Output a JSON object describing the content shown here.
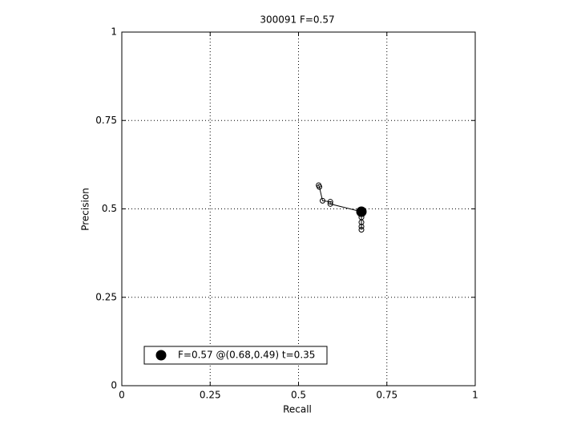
{
  "chart_data": {
    "type": "line",
    "title": "300091 F=0.57",
    "xlabel": "Recall",
    "ylabel": "Precision",
    "xlim": [
      0,
      1
    ],
    "ylim": [
      0,
      1
    ],
    "xticks": [
      0,
      0.25,
      0.5,
      0.75,
      1
    ],
    "yticks": [
      0,
      0.25,
      0.5,
      0.75,
      1
    ],
    "grid": true,
    "legend_loc": "lower-left",
    "series": [
      {
        "color": "#000000",
        "marker": "open",
        "x": [
          0.557,
          0.559,
          0.568,
          0.59,
          0.59,
          0.678,
          0.678,
          0.678,
          0.678,
          0.678
        ],
        "values": [
          0.567,
          0.562,
          0.523,
          0.52,
          0.514,
          0.492,
          0.476,
          0.462,
          0.45,
          0.441
        ]
      },
      {
        "name": "F=0.57 @(0.68,0.49) t=0.35",
        "color": "#000000",
        "marker": "filled",
        "x": [
          0.678
        ],
        "values": [
          0.492
        ]
      }
    ]
  }
}
